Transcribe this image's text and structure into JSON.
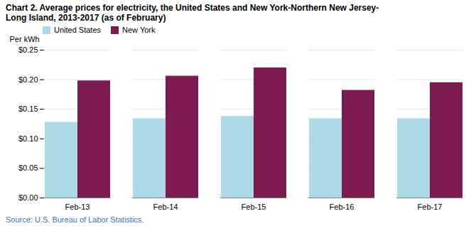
{
  "chart_data": {
    "type": "bar",
    "title": "Chart 2. Average prices for electricity, the United States and New York-Northern New Jersey-\nLong Island, 2013-2017 (as of February)",
    "ylabel": "Per kWh",
    "source": "Source: U.S. Bureau of Labor Statistics.",
    "categories": [
      "Feb-13",
      "Feb-14",
      "Feb-15",
      "Feb-16",
      "Feb-17"
    ],
    "series": [
      {
        "name": "United States",
        "color": "#ADD8E6",
        "values": [
          0.128,
          0.134,
          0.138,
          0.134,
          0.134
        ]
      },
      {
        "name": "New York",
        "color": "#7B1B4E",
        "values": [
          0.198,
          0.206,
          0.22,
          0.182,
          0.195
        ]
      }
    ],
    "ylim": [
      0,
      0.25
    ],
    "yticks": [
      {
        "value": 0.0,
        "label": "$0.00"
      },
      {
        "value": 0.05,
        "label": "$0.05"
      },
      {
        "value": 0.1,
        "label": "$0.10"
      },
      {
        "value": 0.15,
        "label": "$0.15"
      },
      {
        "value": 0.2,
        "label": "$0.20"
      },
      {
        "value": 0.25,
        "label": "$0.25"
      }
    ],
    "grid": true,
    "legend": "upper left"
  }
}
